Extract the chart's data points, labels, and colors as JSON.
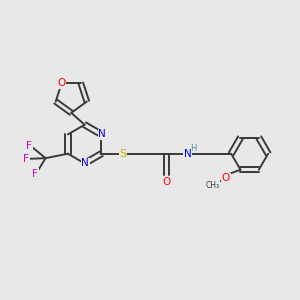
{
  "background_color": "#e8e8e8",
  "bond_color": "#3a3a3a",
  "atom_colors": {
    "N": "#0000ee",
    "O": "#ff0000",
    "S": "#ccaa00",
    "F": "#cc00cc",
    "NH": "#4a9090",
    "C": "#3a3a3a"
  },
  "figsize": [
    3.0,
    3.0
  ],
  "dpi": 100,
  "xlim": [
    0,
    10
  ],
  "ylim": [
    0,
    10
  ]
}
